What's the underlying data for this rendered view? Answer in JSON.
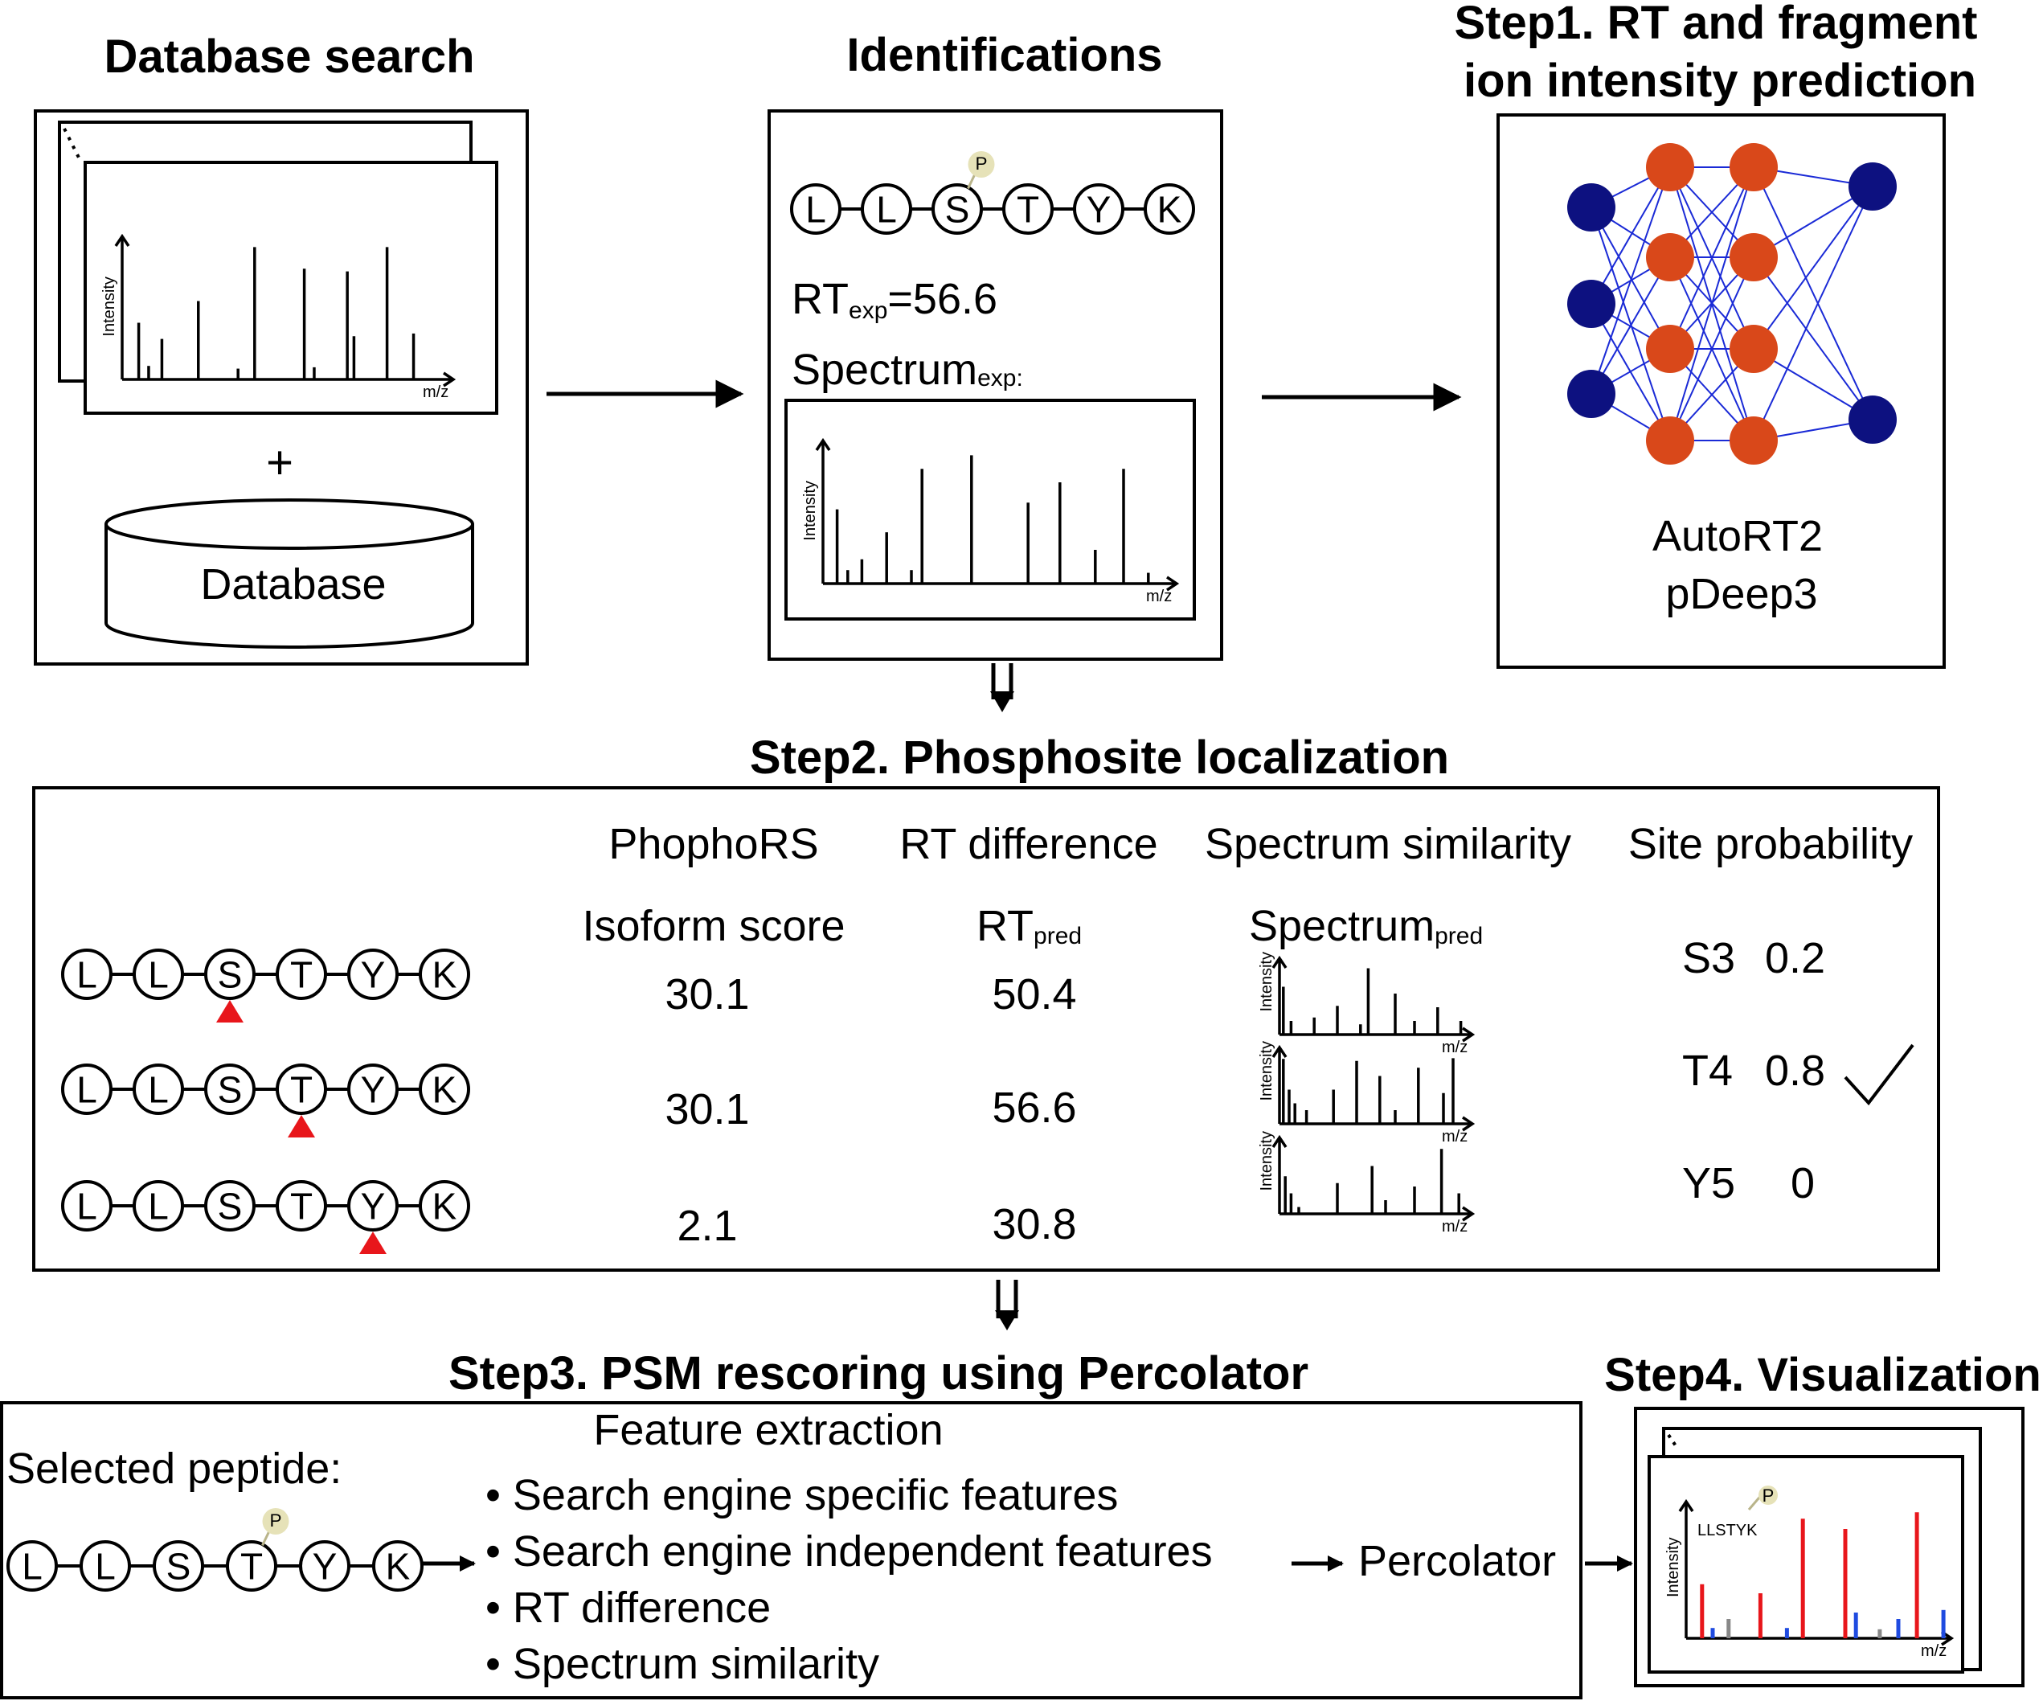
{
  "database_search": {
    "title": "Database search",
    "plus": "+",
    "database_label": "Database",
    "axis_y": "Intensity",
    "axis_x": "m/z"
  },
  "identifications": {
    "title": "Identifications",
    "peptide": [
      "L",
      "L",
      "S",
      "T",
      "Y",
      "K"
    ],
    "phospho": "P",
    "rt_main": "RT",
    "rt_sub": "exp",
    "rt_value": "=56.6",
    "spectrum_main": "Spectrum",
    "spectrum_sub": "exp:",
    "axis_y": "Intensity",
    "axis_x": "m/z"
  },
  "step1": {
    "title_line1": "Step1. RT and fragment",
    "title_line2": "ion intensity prediction",
    "model1": "AutoRT2",
    "model2": "pDeep3",
    "node_colors": {
      "input": "#0d1180",
      "hidden": "#d9481a",
      "edge": "#1a2ad6"
    }
  },
  "step2": {
    "title": "Step2. Phosphosite localization",
    "col_headers": [
      "PhophoRS",
      "RT difference",
      "Spectrum similarity",
      "Site probability"
    ],
    "sub_isoform": "Isoform score",
    "sub_rt_main": "RT",
    "sub_rt_sub": "pred",
    "sub_spec_main": "Spectrum",
    "sub_spec_sub": "pred",
    "axis_y": "Intensity",
    "axis_x": "m/z",
    "marker_color": "#e8161b",
    "rows": [
      {
        "peptide": [
          "L",
          "L",
          "S",
          "T",
          "Y",
          "K"
        ],
        "site_index": 2,
        "isoform_score": "30.1",
        "rt_pred": "50.4",
        "site": "S3",
        "prob": "0.2",
        "selected": false
      },
      {
        "peptide": [
          "L",
          "L",
          "S",
          "T",
          "Y",
          "K"
        ],
        "site_index": 3,
        "isoform_score": "30.1",
        "rt_pred": "56.6",
        "site": "T4",
        "prob": "0.8",
        "selected": true
      },
      {
        "peptide": [
          "L",
          "L",
          "S",
          "T",
          "Y",
          "K"
        ],
        "site_index": 4,
        "isoform_score": "2.1",
        "rt_pred": "30.8",
        "site": "Y5",
        "prob": "0",
        "selected": false
      }
    ]
  },
  "step3": {
    "title": "Step3. PSM rescoring using Percolator",
    "selected_label": "Selected peptide:",
    "peptide": [
      "L",
      "L",
      "S",
      "T",
      "Y",
      "K"
    ],
    "phospho": "P",
    "feature_title": "Feature extraction",
    "features": [
      "• Search engine specific features",
      "• Search engine independent features",
      "• RT difference",
      "• Spectrum similarity"
    ],
    "percolator": "Percolator"
  },
  "step4": {
    "title": "Step4. Visualization",
    "peptide_label": "LLSTYK",
    "phospho": "P",
    "axis_y": "Intensity",
    "axis_x": "m/z",
    "colors": {
      "b_ion": "#e8161b",
      "y_ion": "#1f4be0",
      "other": "#888888"
    }
  },
  "colors": {
    "phospho_fill": "#e6e2b8",
    "phospho_stroke": "#b9b48a"
  }
}
